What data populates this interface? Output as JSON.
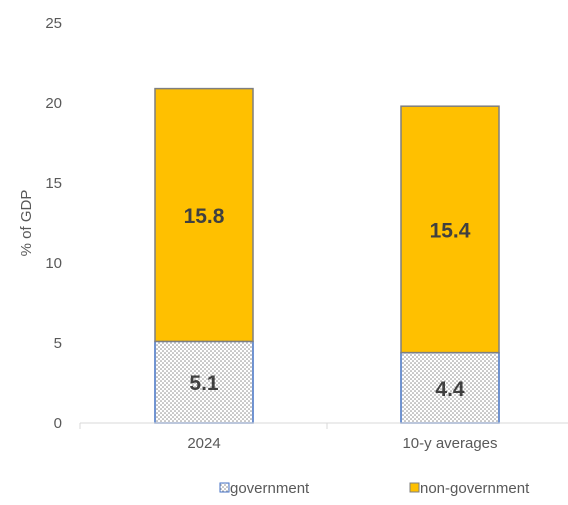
{
  "chart_data": {
    "type": "bar",
    "stacked": true,
    "categories": [
      "2024",
      "10-y averages"
    ],
    "series": [
      {
        "name": "government",
        "values": [
          5.1,
          4.4
        ],
        "color": "#ffffff",
        "pattern": "dotted",
        "border": "#4472C4"
      },
      {
        "name": "non-government",
        "values": [
          15.8,
          15.4
        ],
        "color": "#FFC000",
        "border": "#7f7f7f"
      }
    ],
    "data_labels": [
      [
        "5.1",
        "4.4"
      ],
      [
        "15.8",
        "15.4"
      ]
    ],
    "ylabel": "% of GDP",
    "xlabel": "",
    "ylim": [
      0,
      25
    ],
    "yticks": [
      0,
      5,
      10,
      15,
      20,
      25
    ],
    "grid": false,
    "legend_position": "bottom"
  }
}
